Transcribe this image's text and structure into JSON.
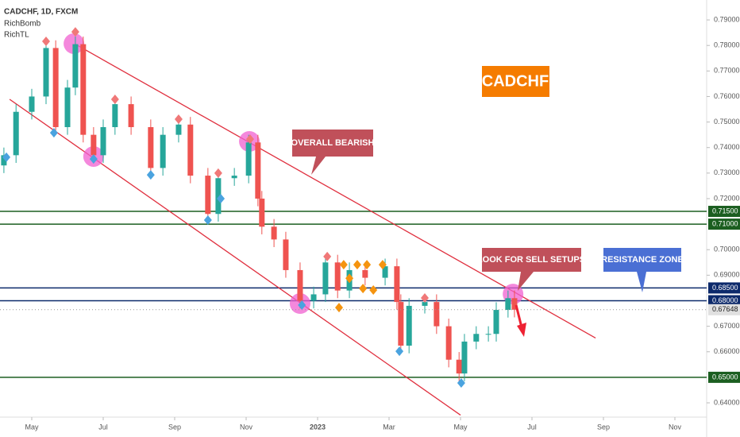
{
  "chart_data": {
    "type": "candlestick",
    "title": "CADCHF, 1D, FXCM",
    "indicators": [
      "RichBomb",
      "RichTL"
    ],
    "annotations": {
      "symbol": "CADCHF",
      "bearish": "OVERALL BEARISH",
      "sell": "LOOK FOR SELL SETUPS",
      "resistance": "RESISTANCE ZONE"
    },
    "xlim": [
      -0.889,
      18.889
    ],
    "ylim": [
      0.6344,
      0.7978
    ],
    "xticks": [
      {
        "value": 0,
        "label": "May"
      },
      {
        "value": 2,
        "label": "Jul"
      },
      {
        "value": 4,
        "label": "Sep"
      },
      {
        "value": 6,
        "label": "Nov"
      },
      {
        "value": 8,
        "label": "2023"
      },
      {
        "value": 10,
        "label": "Mar"
      },
      {
        "value": 12,
        "label": "May"
      },
      {
        "value": 14,
        "label": "Jul"
      },
      {
        "value": 16,
        "label": "Sep"
      },
      {
        "value": 18,
        "label": "Nov"
      }
    ],
    "yticks": [
      {
        "value": 0.79,
        "label": "0.79000"
      },
      {
        "value": 0.78,
        "label": "0.78000"
      },
      {
        "value": 0.77,
        "label": "0.77000"
      },
      {
        "value": 0.76,
        "label": "0.76000"
      },
      {
        "value": 0.75,
        "label": "0.75000"
      },
      {
        "value": 0.74,
        "label": "0.74000"
      },
      {
        "value": 0.73,
        "label": "0.73000"
      },
      {
        "value": 0.72,
        "label": "0.72000"
      },
      {
        "value": 0.7,
        "label": "0.70000"
      },
      {
        "value": 0.69,
        "label": "0.69000"
      },
      {
        "value": 0.67,
        "label": "0.67000"
      },
      {
        "value": 0.66,
        "label": "0.66000"
      },
      {
        "value": 0.64,
        "label": "0.64000"
      }
    ],
    "up_color": "#26a69a",
    "down_color": "#ef5350",
    "x": [
      -0.78,
      -0.44,
      0,
      0.4,
      0.67,
      1.0,
      1.22,
      1.44,
      1.73,
      2.0,
      2.33,
      2.78,
      3.33,
      3.67,
      4.11,
      4.44,
      4.93,
      5.22,
      5.67,
      6.07,
      6.33,
      6.44,
      6.78,
      7.11,
      7.51,
      7.89,
      8.22,
      8.56,
      8.89,
      9.33,
      9.89,
      10.22,
      10.33,
      10.56,
      11.0,
      11.33,
      11.67,
      11.96,
      12.11,
      12.44,
      12.78,
      13.0,
      13.33,
      13.51
    ],
    "open": [
      0.733,
      0.737,
      0.754,
      0.76,
      0.779,
      0.748,
      0.7635,
      0.7805,
      0.745,
      0.737,
      0.748,
      0.757,
      0.748,
      0.732,
      0.745,
      0.749,
      0.729,
      0.714,
      0.728,
      0.729,
      0.742,
      0.72,
      0.709,
      0.704,
      0.692,
      0.68,
      0.6825,
      0.695,
      0.684,
      0.692,
      0.689,
      0.6935,
      0.6795,
      0.6624,
      0.678,
      0.6795,
      0.67,
      0.6569,
      0.6515,
      0.664,
      0.667,
      0.667,
      0.6764,
      0.681
    ],
    "high": [
      0.74,
      0.757,
      0.763,
      0.782,
      0.782,
      0.7665,
      0.7835,
      0.7835,
      0.748,
      0.751,
      0.76,
      0.76,
      0.751,
      0.748,
      0.752,
      0.752,
      0.732,
      0.731,
      0.732,
      0.745,
      0.745,
      0.723,
      0.712,
      0.707,
      0.695,
      0.6855,
      0.698,
      0.698,
      0.695,
      0.695,
      0.6965,
      0.6965,
      0.6825,
      0.681,
      0.6825,
      0.6825,
      0.673,
      0.6599,
      0.667,
      0.67,
      0.67,
      0.6794,
      0.684,
      0.684
    ],
    "low": [
      0.73,
      0.734,
      0.751,
      0.757,
      0.745,
      0.745,
      0.7605,
      0.742,
      0.734,
      0.734,
      0.745,
      0.745,
      0.729,
      0.729,
      0.742,
      0.726,
      0.711,
      0.711,
      0.725,
      0.726,
      0.717,
      0.706,
      0.701,
      0.689,
      0.677,
      0.677,
      0.6795,
      0.681,
      0.681,
      0.686,
      0.686,
      0.6765,
      0.6594,
      0.6594,
      0.675,
      0.667,
      0.6539,
      0.6485,
      0.6485,
      0.661,
      0.664,
      0.664,
      0.6734,
      0.67348
    ],
    "close": [
      0.737,
      0.754,
      0.76,
      0.779,
      0.748,
      0.7635,
      0.7805,
      0.745,
      0.737,
      0.748,
      0.757,
      0.748,
      0.732,
      0.745,
      0.749,
      0.729,
      0.714,
      0.728,
      0.729,
      0.742,
      0.72,
      0.709,
      0.704,
      0.692,
      0.68,
      0.6825,
      0.695,
      0.684,
      0.692,
      0.689,
      0.6935,
      0.6795,
      0.6624,
      0.678,
      0.6795,
      0.67,
      0.6569,
      0.6515,
      0.664,
      0.667,
      0.667,
      0.6764,
      0.681,
      0.67648
    ],
    "levels": [
      {
        "value": 0.715,
        "label": "0.71500",
        "color": "#1b5e20"
      },
      {
        "value": 0.71,
        "label": "0.71000",
        "color": "#1b5e20"
      },
      {
        "value": 0.685,
        "label": "0.68500",
        "color": "#0d2a6b"
      },
      {
        "value": 0.68,
        "label": "0.68000",
        "color": "#0d2a6b"
      },
      {
        "value": 0.65,
        "label": "0.65000",
        "color": "#1b5e20"
      }
    ],
    "last_price": {
      "value": 0.67648,
      "label": "0.67648"
    },
    "trendlines": [
      {
        "color": "#e0303f",
        "x": [
          1.22,
          15.78
        ],
        "y": [
          0.7805,
          0.6654
        ]
      },
      {
        "color": "#e0303f",
        "x": [
          -0.62,
          12.0
        ],
        "y": [
          0.7589,
          0.6352
        ]
      }
    ],
    "signals": [
      {
        "color": "#f07878",
        "x": [
          0.4,
          1.22,
          2.33,
          4.11,
          5.22,
          6.11,
          8.27,
          11.0
        ],
        "y": [
          0.7816,
          0.7853,
          0.7589,
          0.7511,
          0.73,
          0.7433,
          0.6973,
          0.6811
        ]
      },
      {
        "color": "#4aa3df",
        "x": [
          -0.71,
          0.62,
          1.73,
          3.33,
          4.93,
          5.29,
          7.56,
          10.29,
          12.02
        ],
        "y": [
          0.7362,
          0.7458,
          0.7355,
          0.7293,
          0.7116,
          0.72,
          0.6783,
          0.6602,
          0.6478
        ]
      },
      {
        "color": "#f5940f",
        "x": [
          8.6,
          8.73,
          8.89,
          9.11,
          9.27,
          9.38,
          9.56,
          9.82
        ],
        "y": [
          0.6773,
          0.6941,
          0.6888,
          0.6941,
          0.6848,
          0.6941,
          0.6842,
          0.6941
        ]
      }
    ],
    "highlights": {
      "color": "#f060d0",
      "x": [
        1.18,
        1.73,
        6.09,
        7.51,
        13.47
      ],
      "y": [
        0.7807,
        0.7365,
        0.7424,
        0.6789,
        0.6826
      ]
    }
  }
}
